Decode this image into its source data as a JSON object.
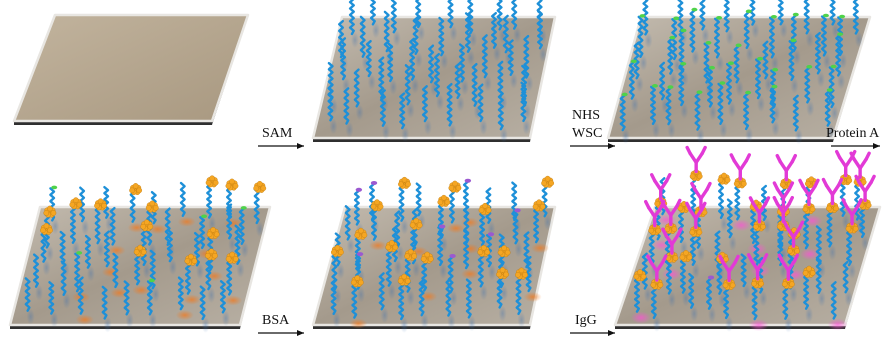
{
  "steps": [
    {
      "label": "SAM"
    },
    {
      "label_line1": "NHS",
      "label_line2": "WSC"
    },
    {
      "label": "Protein A"
    },
    {
      "label": "BSA"
    },
    {
      "label": "IgG"
    }
  ],
  "colors": {
    "background": "#ffffff",
    "substrate_bare": "#b0a08a",
    "substrate_coated": "#aaa092",
    "substrate_edge": "#2f2f2f",
    "linker_chain": "#1e90d8",
    "nhs_ester_cap": "#4fd24a",
    "protein_a": "#f5a623",
    "bsa_shadow": "#e0782a",
    "igg_cap": "#9b59d0",
    "igg": "#e23ad6"
  }
}
